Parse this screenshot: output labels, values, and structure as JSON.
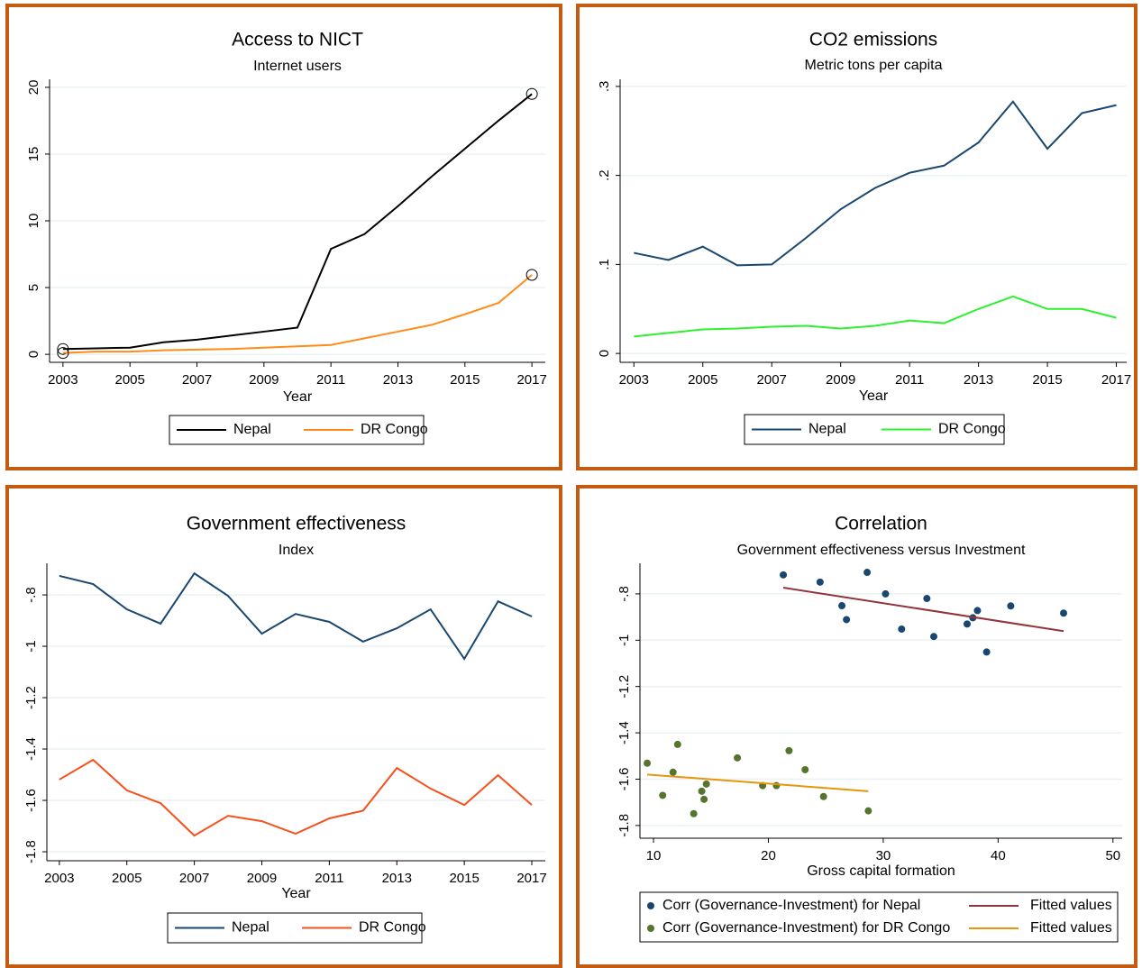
{
  "chart_data": [
    {
      "type": "line",
      "title": "Access to NICT",
      "subtitle": "Internet users",
      "xlabel": "Year",
      "x": [
        2003,
        2004,
        2005,
        2006,
        2007,
        2008,
        2009,
        2010,
        2011,
        2012,
        2013,
        2014,
        2015,
        2016,
        2017
      ],
      "xlim": [
        2002.6,
        2017.4
      ],
      "xticks": [
        2003,
        2005,
        2007,
        2009,
        2011,
        2013,
        2015,
        2017
      ],
      "ylim": [
        -0.6,
        20.6
      ],
      "yticks": [
        0,
        5,
        10,
        15,
        20
      ],
      "grid": true,
      "legend": "bottom",
      "endpoint_markers": true,
      "series": [
        {
          "name": "Nepal",
          "color": "#000000",
          "values": [
            0.4,
            0.45,
            0.5,
            0.9,
            1.1,
            1.4,
            1.7,
            2.0,
            7.9,
            9.0,
            11.1,
            13.3,
            15.4,
            17.5,
            19.5
          ]
        },
        {
          "name": "DR Congo",
          "color": "#ff8c1a",
          "values": [
            0.1,
            0.2,
            0.2,
            0.3,
            0.35,
            0.4,
            0.5,
            0.6,
            0.7,
            1.2,
            1.7,
            2.2,
            3.0,
            3.85,
            5.95
          ]
        }
      ]
    },
    {
      "type": "line",
      "title": "CO2 emissions",
      "subtitle": "Metric tons per capita",
      "xlabel": "Year",
      "x": [
        2003,
        2004,
        2005,
        2006,
        2007,
        2008,
        2009,
        2010,
        2011,
        2012,
        2013,
        2014,
        2015,
        2016,
        2017
      ],
      "xlim": [
        2002.6,
        2017.3
      ],
      "xticks": [
        2003,
        2005,
        2007,
        2009,
        2011,
        2013,
        2015,
        2017
      ],
      "ylim": [
        -0.01,
        0.308
      ],
      "yticks": [
        0,
        {
          "value": 0.1,
          "label": ".1"
        },
        {
          "value": 0.2,
          "label": ".2"
        },
        {
          "value": 0.3,
          "label": ".3"
        }
      ],
      "grid": true,
      "legend": "bottom",
      "series": [
        {
          "name": "Nepal",
          "color": "#1a476f",
          "values": [
            0.113,
            0.105,
            0.12,
            0.099,
            0.1,
            0.13,
            0.162,
            0.186,
            0.203,
            0.211,
            0.237,
            0.283,
            0.23,
            0.27,
            0.279
          ]
        },
        {
          "name": "DR Congo",
          "color": "#2ef02e",
          "values": [
            0.019,
            0.023,
            0.027,
            0.028,
            0.03,
            0.031,
            0.028,
            0.031,
            0.037,
            0.034,
            0.05,
            0.064,
            0.05,
            0.05,
            0.04
          ]
        }
      ]
    },
    {
      "type": "line",
      "title": "Government effectiveness",
      "subtitle": "Index",
      "xlabel": "Year",
      "x": [
        2003,
        2004,
        2005,
        2006,
        2007,
        2008,
        2009,
        2010,
        2011,
        2012,
        2013,
        2014,
        2015,
        2016,
        2017
      ],
      "xlim": [
        2002.63,
        2017.4
      ],
      "xticks": [
        2003,
        2005,
        2007,
        2009,
        2011,
        2013,
        2015,
        2017
      ],
      "ylim": [
        -1.835,
        -0.677
      ],
      "yticks": [
        {
          "value": -0.8,
          "label": "-.8"
        },
        -1,
        -1.2,
        -1.4,
        -1.6,
        -1.8
      ],
      "grid": true,
      "legend": "bottom",
      "series": [
        {
          "name": "Nepal",
          "color": "#1a476f",
          "values": [
            -0.726,
            -0.758,
            -0.856,
            -0.912,
            -0.716,
            -0.804,
            -0.951,
            -0.874,
            -0.905,
            -0.982,
            -0.93,
            -0.856,
            -1.049,
            -0.825,
            -0.884
          ]
        },
        {
          "name": "DR Congo",
          "color": "#f4511e",
          "values": [
            -1.519,
            -1.442,
            -1.561,
            -1.611,
            -1.737,
            -1.66,
            -1.681,
            -1.73,
            -1.67,
            -1.64,
            -1.474,
            -1.554,
            -1.618,
            -1.502,
            -1.618
          ]
        }
      ]
    },
    {
      "type": "scatter",
      "title": "Correlation",
      "subtitle": "Government effectiveness versus Investment",
      "xlabel": "Gross capital formation",
      "xlim": [
        8.82,
        50.8
      ],
      "xticks": [
        10,
        20,
        30,
        40,
        50
      ],
      "ylim": [
        -1.855,
        -0.668
      ],
      "yticks": [
        {
          "value": -0.8,
          "label": "-.8"
        },
        -1,
        -1.2,
        -1.4,
        -1.6,
        -1.8
      ],
      "grid": true,
      "legend": "bottom",
      "series": [
        {
          "name": "Corr (Governance-Investment) for Nepal",
          "color": "#1a476f",
          "type": "scatter",
          "x": [
            21.3,
            24.5,
            28.6,
            26.4,
            26.8,
            30.2,
            31.6,
            33.8,
            34.4,
            37.3,
            37.8,
            38.2,
            39.0,
            41.1,
            45.7
          ],
          "values": [
            -0.718,
            -0.749,
            -0.707,
            -0.851,
            -0.911,
            -0.8,
            -0.952,
            -0.82,
            -0.984,
            -0.93,
            -0.903,
            -0.872,
            -1.051,
            -0.852,
            -0.883
          ]
        },
        {
          "name": "Fitted values",
          "color": "#90353b",
          "type": "line",
          "x": [
            21.3,
            45.7
          ],
          "values": [
            -0.773,
            -0.961
          ]
        },
        {
          "name": "Corr (Governance-Investment) for DR Congo",
          "color": "#55752f",
          "type": "scatter",
          "x": [
            9.45,
            10.8,
            11.7,
            12.1,
            13.5,
            14.2,
            14.4,
            14.6,
            17.3,
            19.5,
            20.7,
            21.8,
            23.2,
            24.8,
            28.7
          ],
          "values": [
            -1.531,
            -1.67,
            -1.57,
            -1.45,
            -1.749,
            -1.652,
            -1.687,
            -1.621,
            -1.508,
            -1.628,
            -1.628,
            -1.477,
            -1.559,
            -1.675,
            -1.737
          ]
        },
        {
          "name": "Fitted values",
          "color": "#e8940c",
          "type": "line",
          "x": [
            9.45,
            28.7
          ],
          "values": [
            -1.58,
            -1.652
          ]
        }
      ]
    }
  ]
}
